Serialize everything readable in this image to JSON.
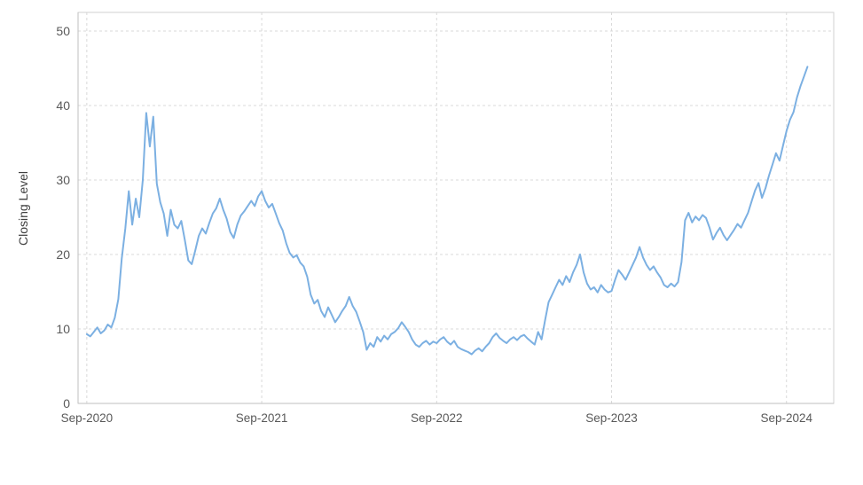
{
  "chart_data": {
    "type": "line",
    "title": "",
    "xlabel": "",
    "ylabel": "Closing Level",
    "ylim": [
      0,
      52.5
    ],
    "xlim": [
      -0.05,
      4.27
    ],
    "grid": "dashed",
    "legend": "none",
    "y_ticks": [
      {
        "v": 0,
        "label": "0"
      },
      {
        "v": 10,
        "label": "10"
      },
      {
        "v": 20,
        "label": "20"
      },
      {
        "v": 30,
        "label": "30"
      },
      {
        "v": 40,
        "label": "40"
      },
      {
        "v": 50,
        "label": "50"
      }
    ],
    "x_ticks": [
      {
        "v": 0,
        "label": "Sep-2020"
      },
      {
        "v": 1,
        "label": "Sep-2021"
      },
      {
        "v": 2,
        "label": "Sep-2022"
      },
      {
        "v": 3,
        "label": "Sep-2023"
      },
      {
        "v": 4,
        "label": "Sep-2024"
      }
    ],
    "x_unit": "years-from-Sep-2020",
    "series": [
      {
        "name": "Closing Level",
        "color": "#7cb0e2",
        "x_start": 0,
        "x_step": 0.02,
        "values": [
          9.3,
          9.0,
          9.6,
          10.2,
          9.4,
          9.8,
          10.6,
          10.2,
          11.5,
          14.0,
          19.5,
          23.5,
          28.5,
          24.0,
          27.5,
          25.0,
          30.0,
          39.0,
          34.5,
          38.5,
          29.5,
          27.0,
          25.5,
          22.5,
          26.0,
          24.0,
          23.5,
          24.5,
          22.0,
          19.2,
          18.7,
          20.5,
          22.5,
          23.5,
          22.8,
          24.2,
          25.5,
          26.2,
          27.5,
          26.0,
          24.8,
          23.0,
          22.2,
          24.0,
          25.2,
          25.8,
          26.5,
          27.2,
          26.5,
          27.8,
          28.5,
          27.2,
          26.3,
          26.8,
          25.5,
          24.2,
          23.2,
          21.5,
          20.2,
          19.6,
          19.9,
          18.9,
          18.4,
          17.0,
          14.6,
          13.4,
          13.9,
          12.4,
          11.6,
          12.9,
          11.9,
          10.9,
          11.6,
          12.4,
          13.1,
          14.3,
          13.1,
          12.3,
          11.0,
          9.6,
          7.2,
          8.1,
          7.6,
          8.9,
          8.3,
          9.1,
          8.6,
          9.3,
          9.6,
          10.1,
          10.9,
          10.3,
          9.6,
          8.6,
          7.9,
          7.6,
          8.1,
          8.4,
          7.9,
          8.3,
          8.1,
          8.6,
          8.9,
          8.3,
          7.9,
          8.4,
          7.6,
          7.3,
          7.1,
          6.9,
          6.6,
          7.1,
          7.4,
          7.0,
          7.6,
          8.1,
          8.9,
          9.4,
          8.8,
          8.4,
          8.1,
          8.6,
          8.9,
          8.5,
          9.0,
          9.2,
          8.7,
          8.3,
          7.9,
          9.6,
          8.6,
          11.2,
          13.6,
          14.6,
          15.6,
          16.6,
          15.9,
          17.1,
          16.3,
          17.6,
          18.6,
          20.0,
          17.6,
          16.1,
          15.3,
          15.6,
          14.9,
          15.9,
          15.3,
          14.9,
          15.1,
          16.6,
          17.9,
          17.3,
          16.6,
          17.6,
          18.6,
          19.6,
          21.0,
          19.6,
          18.6,
          17.9,
          18.4,
          17.6,
          16.9,
          15.9,
          15.6,
          16.1,
          15.7,
          16.3,
          19.0,
          24.6,
          25.6,
          24.3,
          25.1,
          24.6,
          25.3,
          24.9,
          23.6,
          22.0,
          22.9,
          23.6,
          22.6,
          21.9,
          22.6,
          23.3,
          24.1,
          23.6,
          24.6,
          25.6,
          27.1,
          28.6,
          29.6,
          27.6,
          28.9,
          30.6,
          32.1,
          33.6,
          32.6,
          34.6,
          36.6,
          38.1,
          39.1,
          41.1,
          42.6,
          43.9,
          45.2
        ]
      }
    ]
  },
  "colors": {
    "line": "#7cb0e2",
    "grid": "#d9d9d9",
    "border": "#d0d0d0",
    "axis": "#bfbfbf",
    "tick_text": "#595959",
    "axis_title_text": "#404040",
    "background": "#ffffff"
  }
}
